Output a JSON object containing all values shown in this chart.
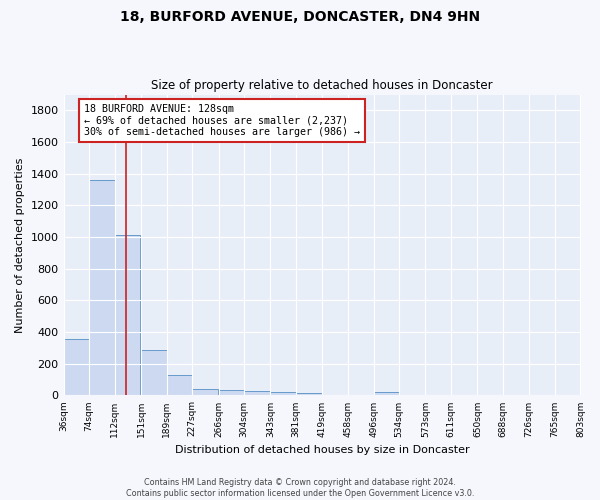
{
  "title1": "18, BURFORD AVENUE, DONCASTER, DN4 9HN",
  "title2": "Size of property relative to detached houses in Doncaster",
  "xlabel": "Distribution of detached houses by size in Doncaster",
  "ylabel": "Number of detached properties",
  "bin_edges": [
    36,
    74,
    112,
    151,
    189,
    227,
    266,
    304,
    343,
    381,
    419,
    458,
    496,
    534,
    573,
    611,
    650,
    688,
    726,
    765,
    803
  ],
  "bar_heights": [
    355,
    1360,
    1010,
    290,
    130,
    40,
    35,
    30,
    20,
    15,
    0,
    0,
    20,
    0,
    0,
    0,
    0,
    0,
    0,
    0
  ],
  "bar_color": "#ccd9f0",
  "bar_edge_color": "#6699cc",
  "bg_color": "#e8eef8",
  "grid_color": "#ffffff",
  "fig_bg_color": "#f5f7fc",
  "red_line_x": 128,
  "red_line_color": "#cc2222",
  "annotation_line1": "18 BURFORD AVENUE: 128sqm",
  "annotation_line2": "← 69% of detached houses are smaller (2,237)",
  "annotation_line3": "30% of semi-detached houses are larger (986) →",
  "annotation_box_color": "#ffffff",
  "annotation_box_edge": "#cc2222",
  "ylim": [
    0,
    1900
  ],
  "yticks": [
    0,
    200,
    400,
    600,
    800,
    1000,
    1200,
    1400,
    1600,
    1800
  ],
  "footer1": "Contains HM Land Registry data © Crown copyright and database right 2024.",
  "footer2": "Contains public sector information licensed under the Open Government Licence v3.0."
}
